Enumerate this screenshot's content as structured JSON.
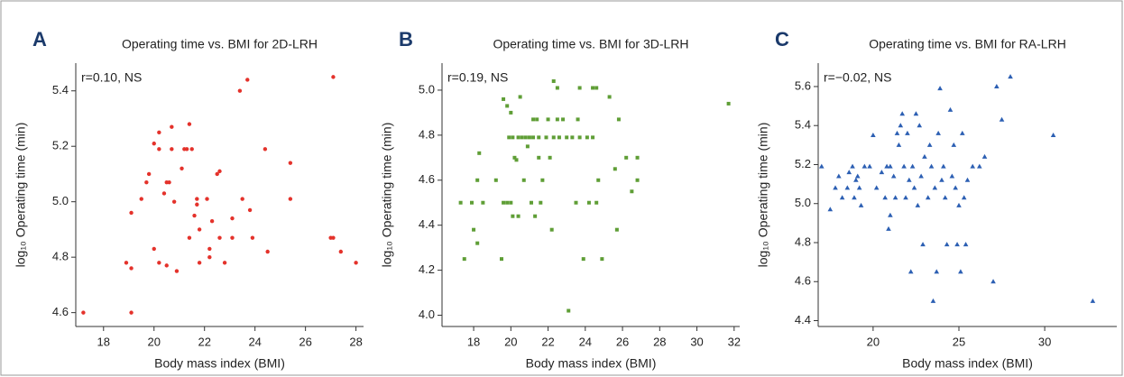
{
  "chart_data": [
    {
      "type": "scatter",
      "panel": "A",
      "title": "Operating time vs. BMI for 2D-LRH",
      "annotation": "r=0.10, NS",
      "x_label": "Body mass index (BMI)",
      "y_label": "log₁₀ Operating time (min)",
      "color": "#e4322b",
      "marker": "circle",
      "xlim": [
        16.9,
        28.3
      ],
      "ylim": [
        4.55,
        5.5
      ],
      "xticks": [
        18,
        20,
        22,
        24,
        26,
        28
      ],
      "yticks": [
        4.6,
        4.8,
        {
          "value": 5,
          "label": "5.0"
        },
        5.2,
        5.4
      ],
      "x": [
        17.2,
        18.9,
        19.1,
        19.1,
        19.1,
        19.5,
        19.7,
        19.8,
        20.0,
        20.0,
        20.2,
        20.2,
        20.2,
        20.4,
        20.5,
        20.5,
        20.6,
        20.7,
        20.7,
        20.8,
        20.9,
        21.1,
        21.2,
        21.3,
        21.4,
        21.4,
        21.5,
        21.6,
        21.7,
        21.7,
        21.8,
        21.8,
        22.1,
        22.2,
        22.2,
        22.3,
        22.5,
        22.6,
        22.6,
        22.8,
        23.1,
        23.1,
        23.4,
        23.5,
        23.7,
        23.8,
        23.9,
        24.4,
        24.5,
        25.4,
        25.4,
        27.0,
        27.1,
        27.1,
        27.4,
        28.0
      ],
      "values": [
        4.6,
        4.78,
        4.76,
        4.6,
        4.96,
        5.01,
        5.07,
        5.1,
        5.21,
        4.83,
        5.19,
        5.25,
        4.78,
        5.03,
        4.77,
        5.07,
        5.07,
        5.27,
        5.19,
        5.0,
        4.75,
        5.12,
        5.19,
        5.19,
        5.28,
        4.87,
        5.19,
        4.95,
        5.01,
        4.99,
        4.9,
        4.78,
        5.01,
        4.83,
        4.8,
        4.93,
        5.1,
        5.11,
        4.87,
        4.78,
        4.94,
        4.87,
        5.4,
        5.01,
        5.44,
        4.97,
        4.87,
        5.19,
        4.82,
        5.14,
        5.01,
        4.87,
        4.87,
        5.45,
        4.82,
        4.78
      ]
    },
    {
      "type": "scatter",
      "panel": "B",
      "title": "Operating time vs. BMI for 3D-LRH",
      "annotation": "r=0.19, NS",
      "x_label": "Body mass index (BMI)",
      "y_label": "log₁₀ Operating time (min)",
      "color": "#5f9e36",
      "marker": "square",
      "xlim": [
        16.3,
        32.3
      ],
      "ylim": [
        3.95,
        5.12
      ],
      "xticks": [
        18,
        20,
        22,
        24,
        26,
        28,
        30,
        32
      ],
      "yticks": [
        {
          "value": 4,
          "label": "4.0"
        },
        4.2,
        4.4,
        4.6,
        4.8,
        {
          "value": 5,
          "label": "5.0"
        }
      ],
      "x": [
        17.3,
        17.5,
        17.9,
        18.0,
        18.2,
        18.2,
        18.3,
        18.5,
        19.2,
        19.5,
        19.6,
        19.6,
        19.8,
        19.8,
        19.9,
        20.0,
        20.0,
        20.1,
        20.1,
        20.2,
        20.3,
        20.4,
        20.4,
        20.5,
        20.6,
        20.7,
        20.8,
        20.9,
        21.0,
        21.1,
        21.2,
        21.2,
        21.3,
        21.4,
        21.5,
        21.5,
        21.6,
        21.7,
        21.9,
        22.0,
        22.1,
        22.2,
        22.3,
        22.3,
        22.5,
        22.5,
        22.6,
        22.8,
        23.0,
        23.1,
        23.3,
        23.5,
        23.6,
        23.7,
        23.7,
        23.9,
        24.1,
        24.2,
        24.4,
        24.4,
        24.6,
        24.6,
        24.7,
        24.9,
        25.3,
        25.6,
        25.7,
        25.8,
        26.2,
        26.5,
        26.8,
        26.8,
        31.7
      ],
      "values": [
        4.5,
        4.25,
        4.5,
        4.38,
        4.32,
        4.6,
        4.72,
        4.5,
        4.6,
        4.25,
        4.5,
        4.96,
        4.5,
        4.93,
        4.79,
        4.5,
        4.9,
        4.44,
        4.79,
        4.7,
        4.69,
        4.44,
        4.79,
        4.97,
        4.79,
        4.6,
        4.79,
        4.75,
        4.79,
        4.5,
        4.87,
        4.79,
        4.44,
        4.87,
        4.7,
        4.79,
        4.5,
        4.6,
        4.79,
        4.87,
        4.7,
        4.38,
        5.04,
        4.79,
        5.01,
        4.87,
        4.79,
        4.87,
        4.79,
        4.02,
        4.79,
        4.5,
        4.87,
        5.01,
        4.79,
        4.25,
        4.79,
        4.5,
        5.01,
        4.79,
        5.01,
        4.5,
        4.6,
        4.25,
        4.97,
        4.65,
        4.38,
        4.87,
        4.7,
        4.55,
        4.6,
        4.7,
        4.94
      ]
    },
    {
      "type": "scatter",
      "panel": "C",
      "title": "Operating time vs. BMI for RA-LRH",
      "annotation": "r=−0.02, NS",
      "x_label": "Body mass index (BMI)",
      "y_label": "log₁₀ Operating time (min)",
      "color": "#2c5fb3",
      "marker": "triangle",
      "xlim": [
        16.8,
        34.2
      ],
      "ylim": [
        4.37,
        5.72
      ],
      "xticks": [
        20,
        25,
        30
      ],
      "yticks": [
        4.4,
        4.6,
        4.8,
        {
          "value": 5,
          "label": "5.0"
        },
        5.2,
        5.4,
        5.6
      ],
      "x": [
        17.0,
        17.5,
        17.8,
        18.0,
        18.2,
        18.5,
        18.6,
        18.8,
        18.9,
        19.0,
        19.1,
        19.2,
        19.3,
        19.5,
        19.8,
        20.0,
        20.2,
        20.5,
        20.7,
        20.8,
        20.9,
        21.0,
        21.0,
        21.2,
        21.3,
        21.4,
        21.5,
        21.6,
        21.7,
        21.8,
        21.9,
        22.0,
        22.1,
        22.2,
        22.3,
        22.4,
        22.5,
        22.6,
        22.7,
        22.8,
        22.9,
        23.0,
        23.2,
        23.3,
        23.4,
        23.5,
        23.6,
        23.7,
        23.8,
        23.9,
        24.0,
        24.1,
        24.2,
        24.3,
        24.5,
        24.6,
        24.7,
        24.8,
        25.0,
        25.1,
        25.2,
        25.3,
        25.5,
        25.8,
        26.2,
        26.5,
        27.0,
        27.2,
        27.5,
        28.0,
        30.5,
        32.8,
        24.9,
        25.4
      ],
      "values": [
        5.19,
        4.97,
        5.08,
        5.14,
        5.03,
        5.08,
        5.16,
        5.19,
        5.03,
        5.12,
        5.14,
        5.08,
        4.99,
        5.19,
        5.19,
        5.35,
        5.08,
        5.16,
        5.03,
        5.19,
        4.87,
        5.19,
        4.94,
        5.14,
        5.03,
        5.36,
        5.3,
        5.4,
        5.46,
        5.19,
        5.03,
        5.36,
        5.12,
        4.65,
        5.19,
        5.08,
        5.46,
        4.99,
        5.4,
        5.14,
        4.79,
        5.24,
        5.03,
        5.3,
        5.19,
        4.5,
        5.08,
        4.65,
        5.36,
        5.59,
        5.12,
        5.19,
        5.03,
        4.79,
        5.48,
        5.14,
        5.3,
        5.08,
        4.99,
        4.65,
        5.36,
        5.03,
        5.12,
        5.19,
        5.19,
        5.24,
        4.6,
        5.6,
        5.43,
        5.65,
        5.35,
        4.5,
        4.79,
        4.79
      ]
    }
  ]
}
